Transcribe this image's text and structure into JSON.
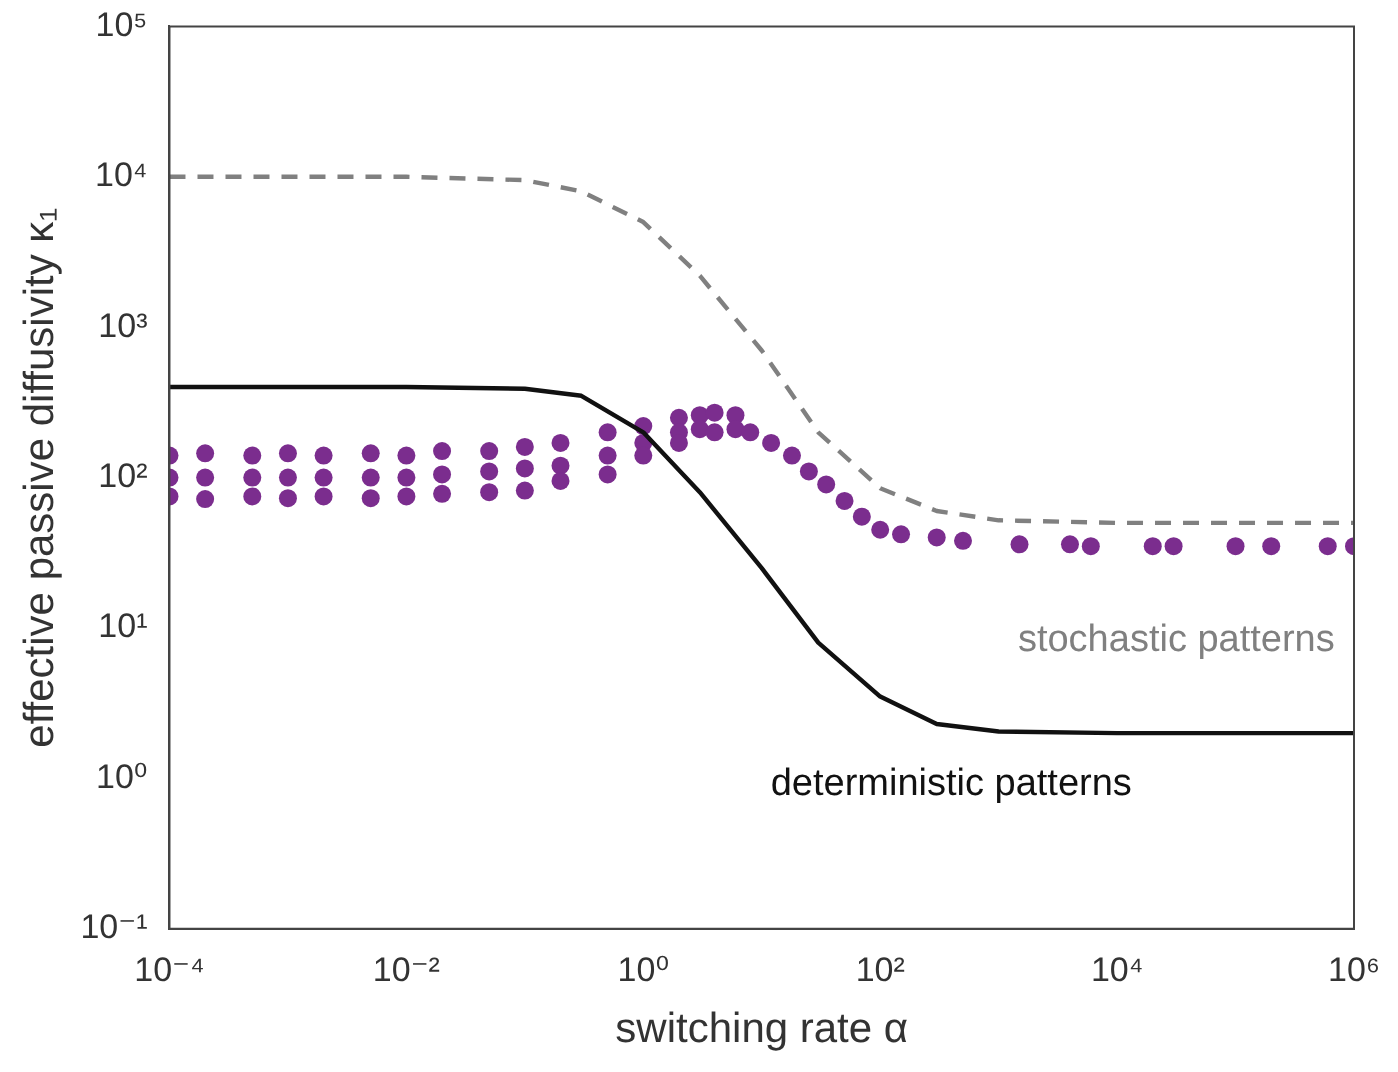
{
  "chart_data": {
    "type": "line",
    "xlabel": "switching rate α",
    "ylabel": "effective passive diffusivity κ₁",
    "log": "xy",
    "grid": false,
    "legend": false,
    "xlim": [
      0.0001,
      1000000
    ],
    "ylim": [
      0.1,
      100000
    ],
    "xticks": [
      {
        "value": 0.0001,
        "label": "10⁻⁴"
      },
      {
        "value": 0.01,
        "label": "10⁻²"
      },
      {
        "value": 1,
        "label": "10⁰"
      },
      {
        "value": 100,
        "label": "10²"
      },
      {
        "value": 10000,
        "label": "10⁴"
      },
      {
        "value": 1000000,
        "label": "10⁶"
      }
    ],
    "yticks": [
      {
        "value": 0.1,
        "label": "10⁻¹"
      },
      {
        "value": 1,
        "label": "10⁰"
      },
      {
        "value": 10,
        "label": "10¹"
      },
      {
        "value": 100,
        "label": "10²"
      },
      {
        "value": 1000,
        "label": "10³"
      },
      {
        "value": 10000,
        "label": "10⁴"
      },
      {
        "value": 100000,
        "label": "10⁵"
      }
    ],
    "series": [
      {
        "color": "#111111",
        "line_style": "solid",
        "marker": "none",
        "x": [
          0.0001,
          0.01,
          0.1,
          0.3,
          1,
          3,
          10,
          30,
          100,
          300,
          1000,
          10000,
          1000000
        ],
        "values": [
          400,
          400,
          390,
          350,
          200,
          80,
          25,
          8,
          3.5,
          2.3,
          2.05,
          2,
          2
        ]
      },
      {
        "color": "#808080",
        "line_style": "dashed",
        "marker": "none",
        "x": [
          0.0001,
          0.01,
          0.1,
          0.3,
          1,
          3,
          10,
          30,
          100,
          300,
          1000,
          10000,
          1000000
        ],
        "values": [
          10000,
          10000,
          9500,
          8000,
          5000,
          2200,
          700,
          200,
          85,
          60,
          52,
          50,
          50
        ]
      },
      {
        "type": "scatter",
        "color": "#7b2d8e",
        "marker": "circle",
        "x": [
          0.0001,
          0.0001,
          0.0001,
          0.0002,
          0.0002,
          0.0002,
          0.0005,
          0.0005,
          0.0005,
          0.001,
          0.001,
          0.001,
          0.002,
          0.002,
          0.002,
          0.005,
          0.005,
          0.005,
          0.01,
          0.01,
          0.01,
          0.02,
          0.02,
          0.02,
          0.05,
          0.05,
          0.05,
          0.1,
          0.1,
          0.1,
          0.2,
          0.2,
          0.2,
          0.5,
          0.5,
          0.5,
          1,
          1,
          1,
          2,
          2,
          2,
          3,
          3,
          4,
          4,
          6,
          6,
          8,
          12,
          18,
          25,
          35,
          50,
          70,
          100,
          150,
          300,
          500,
          1500,
          4000,
          6000,
          20000,
          30000,
          100000,
          200000,
          600000,
          1000000
        ],
        "values": [
          140,
          100,
          75,
          145,
          100,
          72,
          140,
          100,
          75,
          145,
          100,
          73,
          140,
          100,
          75,
          145,
          100,
          73,
          140,
          100,
          75,
          150,
          105,
          78,
          150,
          110,
          80,
          160,
          115,
          82,
          170,
          120,
          95,
          200,
          140,
          105,
          220,
          170,
          140,
          250,
          200,
          170,
          260,
          210,
          270,
          200,
          260,
          210,
          200,
          170,
          140,
          110,
          90,
          70,
          55,
          45,
          42,
          40,
          38,
          36,
          36,
          35,
          35,
          35,
          35,
          35,
          35,
          35
        ]
      }
    ],
    "annotations": [
      "deterministic patterns",
      "stochastic patterns"
    ]
  }
}
